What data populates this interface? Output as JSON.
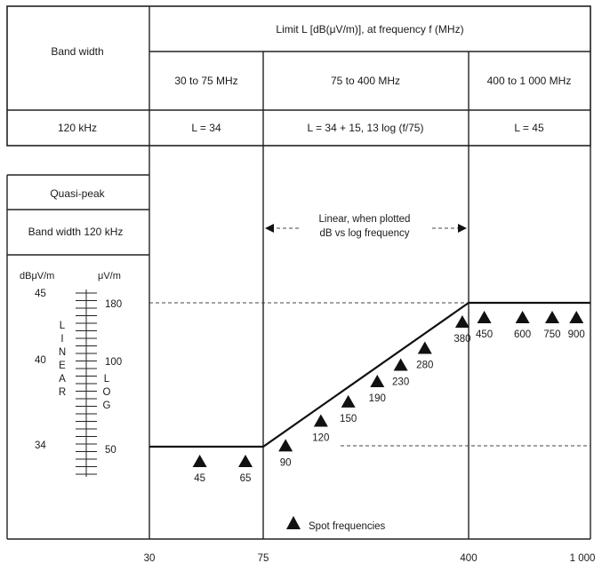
{
  "header": {
    "limit_title": "Limit L [dB(μV/m)], at frequency f (MHz)",
    "bandwidth_label": "Band width",
    "ranges": [
      "30 to 75 MHz",
      "75 to 400 MHz",
      "400 to 1 000 MHz"
    ],
    "bandwidth_value": "120 kHz",
    "formulas": [
      "L = 34",
      "L = 34 + 15, 13 log (f/75)",
      "L = 45"
    ]
  },
  "left_panel": {
    "detector": "Quasi-peak",
    "bandwidth": "Band width 120 kHz",
    "unit_db": "dBμV/m",
    "unit_uv": "μV/m",
    "db_values": [
      "45",
      "40",
      "34"
    ],
    "uv_values": [
      "180",
      "100",
      "50"
    ],
    "linear_letters": [
      "L",
      "I",
      "N",
      "E",
      "A",
      "R"
    ],
    "log_letters": [
      "L",
      "O",
      "G"
    ]
  },
  "annotation": {
    "line1": "Linear, when plotted",
    "line2": "dB vs log frequency"
  },
  "spot_frequencies": {
    "legend": "Spot frequencies",
    "labels": [
      "45",
      "65",
      "90",
      "120",
      "150",
      "190",
      "230",
      "280",
      "380",
      "450",
      "600",
      "750",
      "900"
    ]
  },
  "x_axis": {
    "labels": [
      "30",
      "75",
      "400",
      "1 000"
    ]
  },
  "limit_line": {
    "breakpoints_mhz": [
      30,
      75,
      400,
      1000
    ],
    "levels_db": [
      34,
      34,
      45,
      45
    ]
  }
}
